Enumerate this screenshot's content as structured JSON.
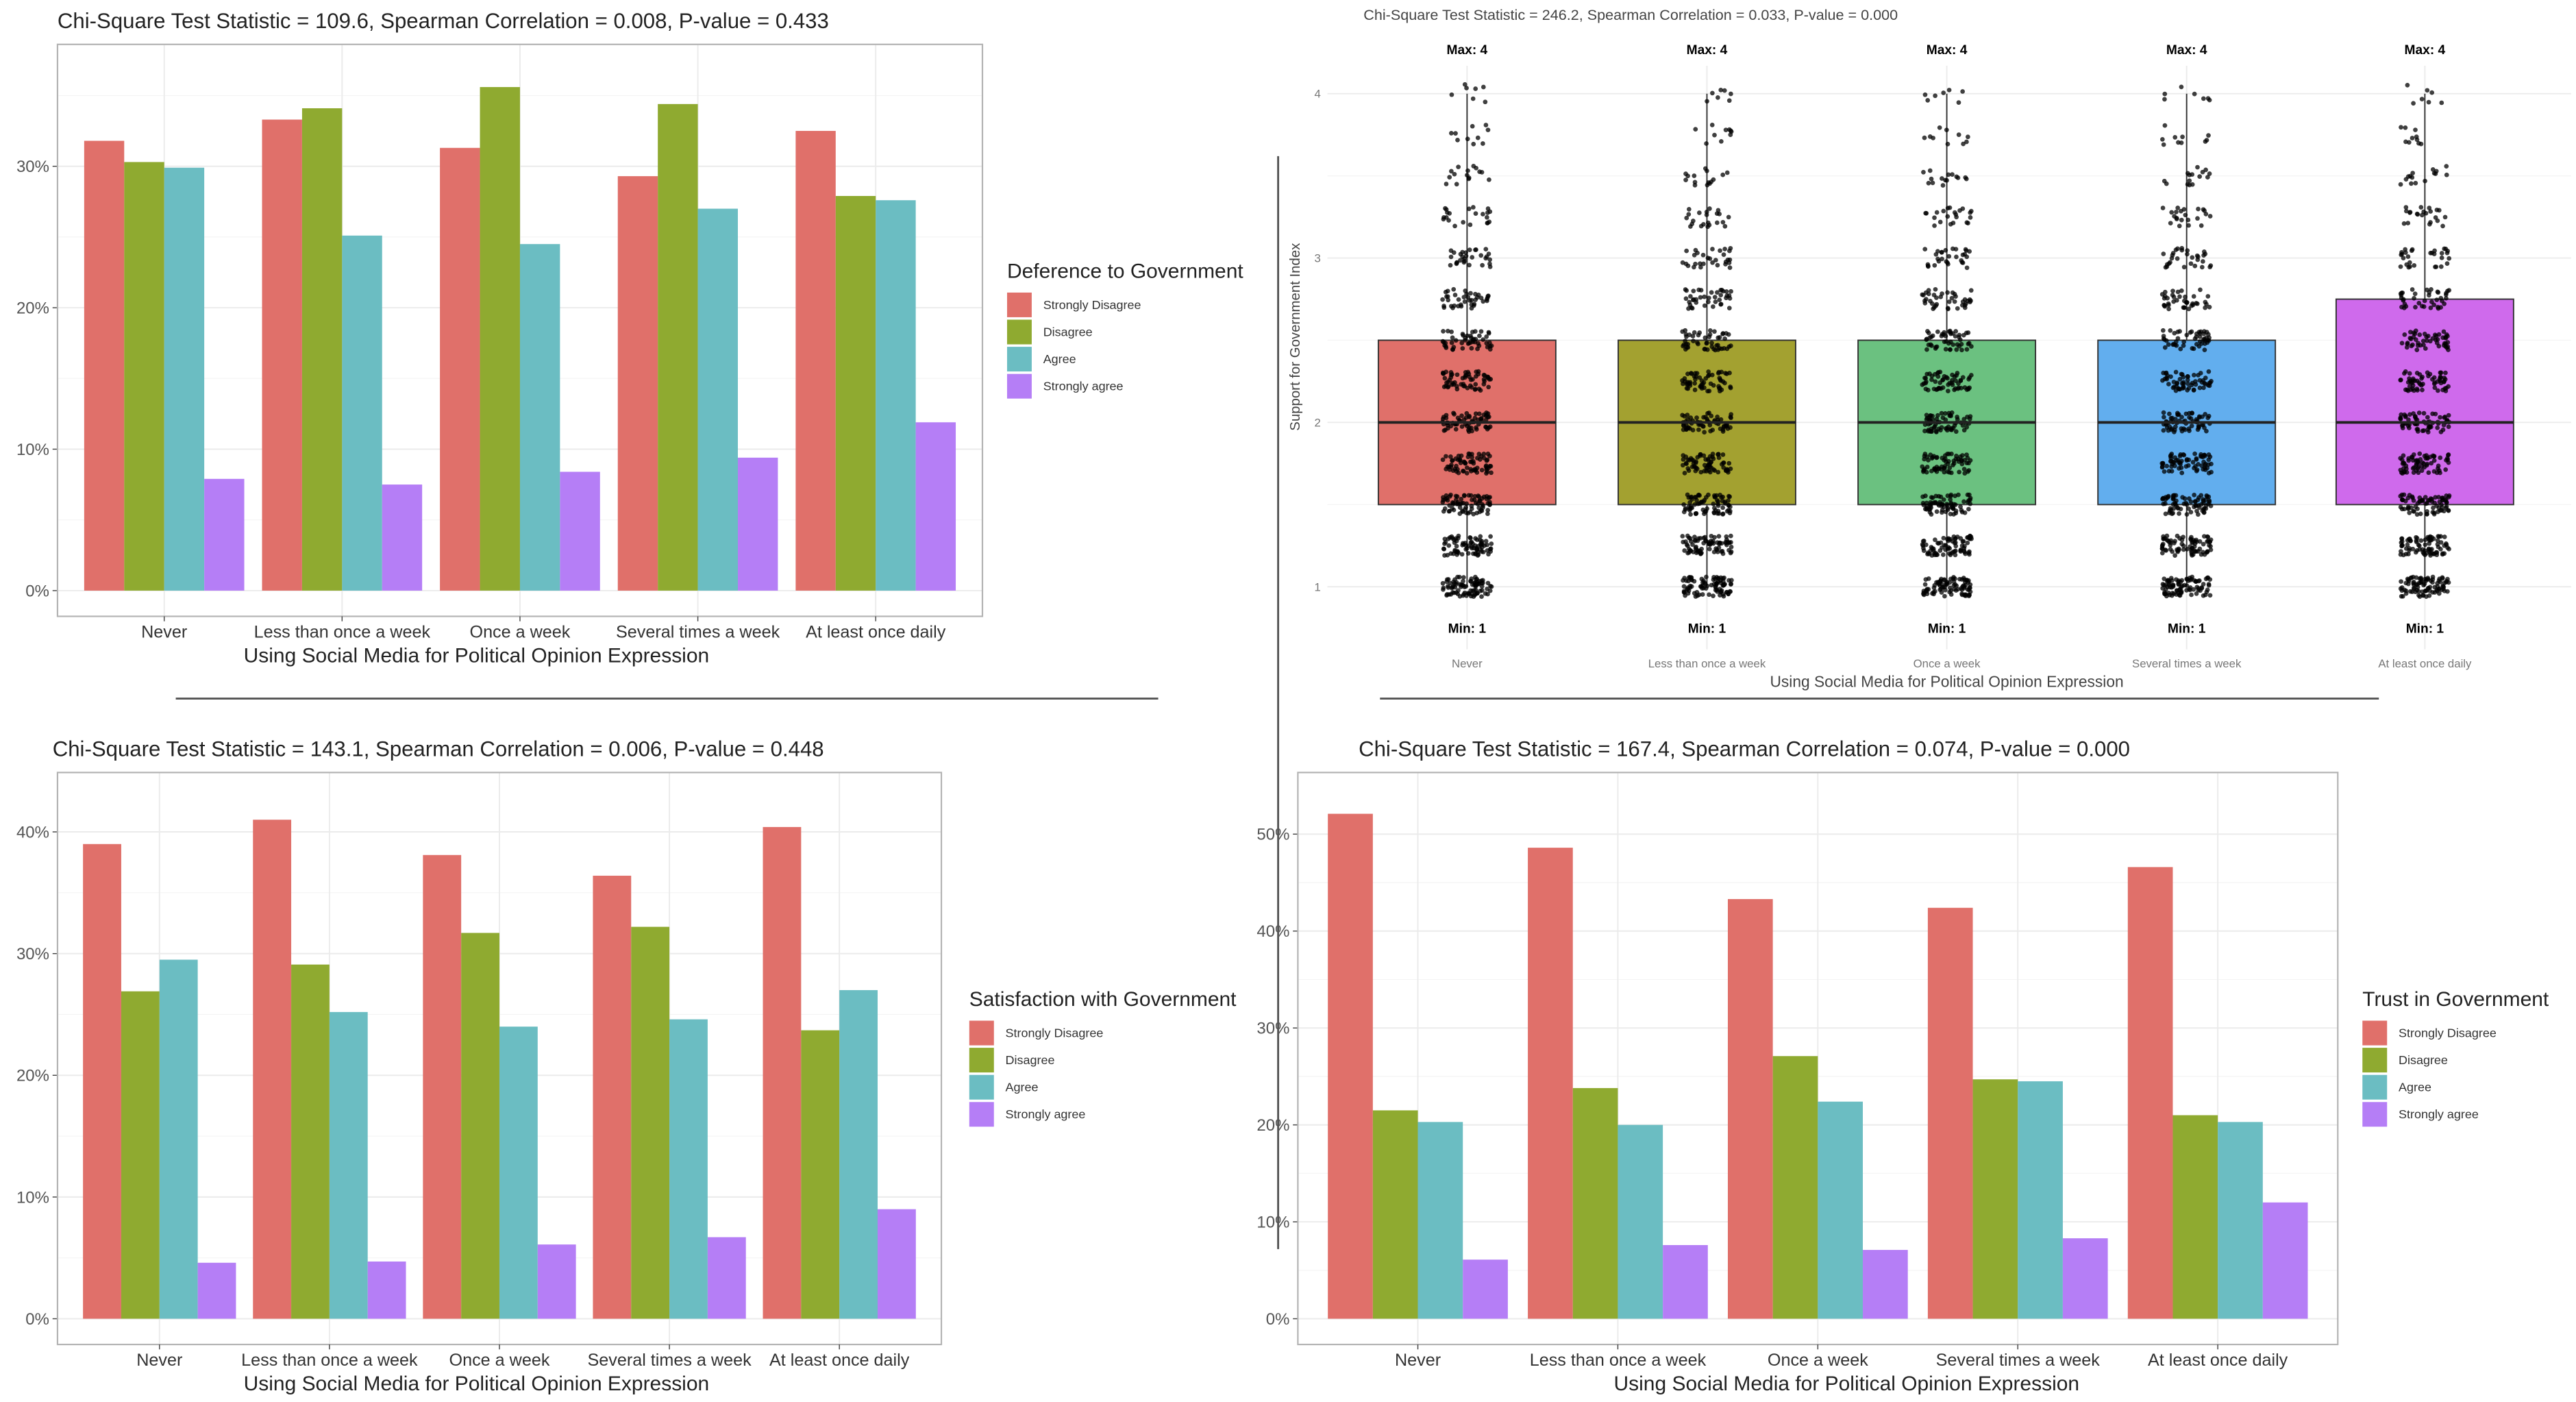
{
  "colors": {
    "strongly_disagree": "#E0706A",
    "disagree": "#8FAA30",
    "agree": "#6BBDC2",
    "strongly_agree": "#B57EF6",
    "box_never": "#E0706A",
    "box_less": "#A3A130",
    "box_once": "#6BC180",
    "box_several": "#62AEEE",
    "box_daily": "#CF6AEC",
    "points": "#000000"
  },
  "chart_data": [
    {
      "id": "deference",
      "type": "bar",
      "title": "Chi-Square Test Statistic = 109.6,  Spearman Correlation = 0.008, P-value = 0.433",
      "xlabel": "Using Social Media for Political Opinion Expression",
      "ylabel": "",
      "ylim": [
        0,
        0.37
      ],
      "yticks": [
        0,
        0.1,
        0.2,
        0.3
      ],
      "ytick_labels": [
        "0%",
        "10%",
        "20%",
        "30%"
      ],
      "grid": true,
      "categories": [
        "Never",
        "Less than once a week",
        "Once a week",
        "Several times a week",
        "At least once daily"
      ],
      "legend": {
        "title": "Deference to Government",
        "placement": "right"
      },
      "series": [
        {
          "name": "Strongly Disagree",
          "values": [
            31.8,
            33.3,
            31.3,
            29.3,
            32.5
          ]
        },
        {
          "name": "Disagree",
          "values": [
            30.3,
            34.1,
            35.6,
            34.4,
            27.9
          ]
        },
        {
          "name": "Agree",
          "values": [
            29.9,
            25.1,
            24.5,
            27.0,
            27.6
          ]
        },
        {
          "name": "Strongly agree",
          "values": [
            7.9,
            7.5,
            8.4,
            9.4,
            11.9
          ]
        }
      ]
    },
    {
      "id": "support_index",
      "type": "box",
      "title": "Chi-Square Test Statistic = 246.2,  Spearman Correlation = 0.033, P-value = 0.000",
      "xlabel": "Using Social Media for Political Opinion Expression",
      "ylabel": "Support for Government Index",
      "ylim": [
        0.9,
        4.2
      ],
      "yticks": [
        1,
        2,
        3,
        4
      ],
      "ytick_labels": [
        "1",
        "2",
        "3",
        "4"
      ],
      "grid": true,
      "categories": [
        "Never",
        "Less than once a week",
        "Once a week",
        "Several times a week",
        "At least once daily"
      ],
      "boxes": [
        {
          "q1": 1.5,
          "median": 2.0,
          "q3": 2.5,
          "min": 1,
          "max": 4,
          "max_label": "Max: 4",
          "min_label": "Min: 1"
        },
        {
          "q1": 1.5,
          "median": 2.0,
          "q3": 2.5,
          "min": 1,
          "max": 4,
          "max_label": "Max: 4",
          "min_label": "Min: 1"
        },
        {
          "q1": 1.5,
          "median": 2.0,
          "q3": 2.5,
          "min": 1,
          "max": 4,
          "max_label": "Max: 4",
          "min_label": "Min: 1"
        },
        {
          "q1": 1.5,
          "median": 2.0,
          "q3": 2.5,
          "min": 1,
          "max": 4,
          "max_label": "Max: 4",
          "min_label": "Min: 1"
        },
        {
          "q1": 1.5,
          "median": 2.0,
          "q3": 2.75,
          "min": 1,
          "max": 4,
          "max_label": "Max: 4",
          "min_label": "Min: 1"
        }
      ],
      "jitter_points": "dense overlaid raw observations (index values 1 to 4 in 0.25 steps)"
    },
    {
      "id": "satisfaction",
      "type": "bar",
      "title": "Chi-Square Test Statistic = 143.1,  Spearman Correlation = 0.006, P-value = 0.448",
      "xlabel": "Using Social Media for Political Opinion Expression",
      "ylabel": "",
      "ylim": [
        0,
        0.43
      ],
      "yticks": [
        0,
        0.1,
        0.2,
        0.3,
        0.4
      ],
      "ytick_labels": [
        "0%",
        "10%",
        "20%",
        "30%",
        "40%"
      ],
      "grid": true,
      "categories": [
        "Never",
        "Less than once a week",
        "Once a week",
        "Several times a week",
        "At least once daily"
      ],
      "legend": {
        "title": "Satisfaction with Government",
        "placement": "right"
      },
      "series": [
        {
          "name": "Strongly Disagree",
          "values": [
            39.0,
            41.0,
            38.1,
            36.4,
            40.4
          ]
        },
        {
          "name": "Disagree",
          "values": [
            26.9,
            29.1,
            31.7,
            32.2,
            23.7
          ]
        },
        {
          "name": "Agree",
          "values": [
            29.5,
            25.2,
            24.0,
            24.6,
            27.0
          ]
        },
        {
          "name": "Strongly agree",
          "values": [
            4.6,
            4.7,
            6.1,
            6.7,
            9.0
          ]
        }
      ]
    },
    {
      "id": "trust",
      "type": "bar",
      "title": "Chi-Square Test Statistic = 167.4,  Spearman Correlation = 0.074, P-value = 0.000",
      "xlabel": "Using Social Media for Political Opinion Expression",
      "ylabel": "",
      "ylim": [
        0,
        0.54
      ],
      "yticks": [
        0,
        0.1,
        0.2,
        0.3,
        0.4,
        0.5
      ],
      "ytick_labels": [
        "0%",
        "10%",
        "20%",
        "30%",
        "40%",
        "50%"
      ],
      "grid": true,
      "categories": [
        "Never",
        "Less than once a week",
        "Once a week",
        "Several times a week",
        "At least once daily"
      ],
      "legend": {
        "title": "Trust in Government",
        "placement": "right"
      },
      "series": [
        {
          "name": "Strongly Disagree",
          "values": [
            52.1,
            48.6,
            43.3,
            42.4,
            46.6
          ]
        },
        {
          "name": "Disagree",
          "values": [
            21.5,
            23.8,
            27.1,
            24.7,
            21.0
          ]
        },
        {
          "name": "Agree",
          "values": [
            20.3,
            20.0,
            22.4,
            24.5,
            20.3
          ]
        },
        {
          "name": "Strongly agree",
          "values": [
            6.1,
            7.6,
            7.1,
            8.3,
            12.0
          ]
        }
      ]
    }
  ]
}
